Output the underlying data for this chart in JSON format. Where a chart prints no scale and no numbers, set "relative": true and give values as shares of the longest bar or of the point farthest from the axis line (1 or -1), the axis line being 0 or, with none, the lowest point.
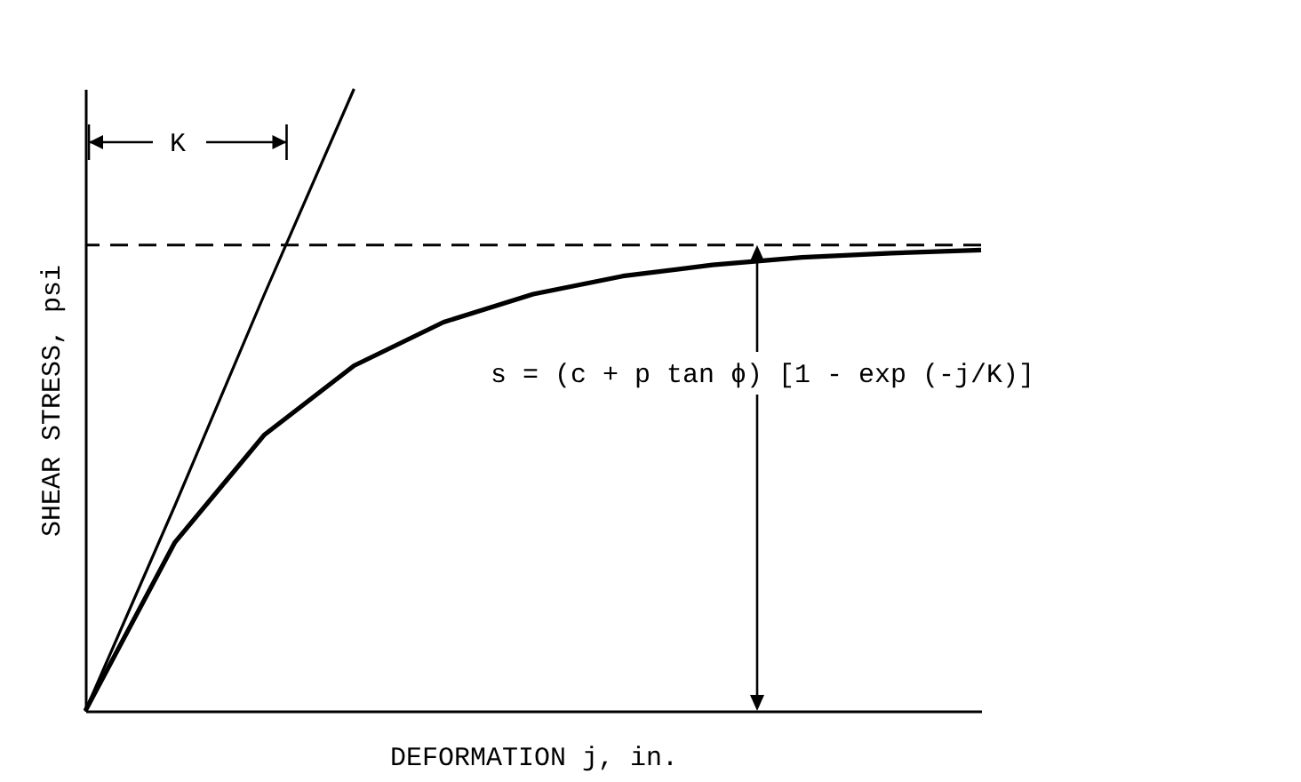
{
  "chart_data": {
    "type": "line",
    "relative": true,
    "xlabel": "DEFORMATION j, in.",
    "ylabel": "SHEAR STRESS, psi",
    "categories": [
      null,
      null,
      null,
      null,
      null,
      null,
      null,
      null,
      null,
      null,
      null
    ],
    "series": [
      {
        "color": "#000000",
        "values": [
          0,
          0.271,
          0.444,
          0.555,
          0.625,
          0.67,
          0.699,
          0.717,
          0.729,
          0.736,
          0.741
        ]
      },
      {
        "color": "#000000",
        "values": [
          0,
          0.33,
          0.67,
          1.0,
          null,
          null,
          null,
          null,
          null,
          null,
          null
        ]
      }
    ],
    "ref_lines": [
      {
        "axis": "y",
        "value": 0.749,
        "line_style": "dashed",
        "color": "#000000"
      }
    ],
    "annotations": [
      "K",
      "s = (c + p tan ϕ) [1 - exp (-j/K)]"
    ],
    "line_style": "solid"
  }
}
